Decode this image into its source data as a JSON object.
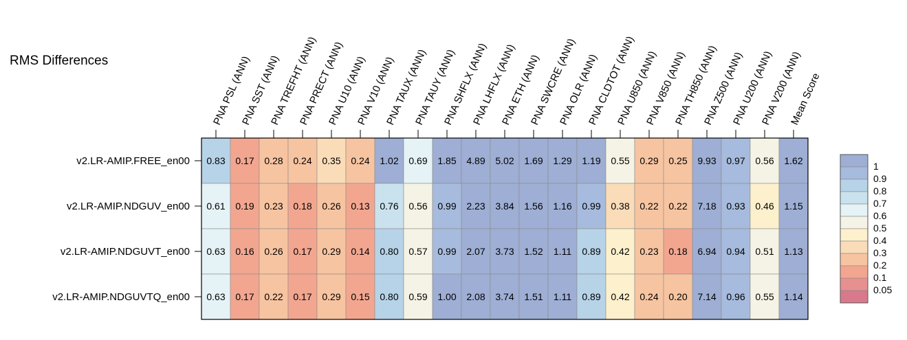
{
  "chart_data": {
    "type": "heatmap",
    "title": "RMS Differences",
    "columns": [
      "PNA PSL (ANN)",
      "PNA SST (ANN)",
      "PNA TREFHT (ANN)",
      "PNA PRECT (ANN)",
      "PNA U10 (ANN)",
      "PNA V10 (ANN)",
      "PNA TAUX (ANN)",
      "PNA TAUY (ANN)",
      "PNA SHFLX (ANN)",
      "PNA LHFLX (ANN)",
      "PNA ETH (ANN)",
      "PNA SWCRE (ANN)",
      "PNA OLR (ANN)",
      "PNA CLDTOT (ANN)",
      "PNA U850 (ANN)",
      "PNA V850 (ANN)",
      "PNA TH850 (ANN)",
      "PNA Z500 (ANN)",
      "PNA U200 (ANN)",
      "PNA V200 (ANN)",
      "Mean Score"
    ],
    "rows": [
      "v2.LR-AMIP.FREE_en00",
      "v2.LR-AMIP.NDGUV_en00",
      "v2.LR-AMIP.NDGUVT_en00",
      "v2.LR-AMIP.NDGUVTQ_en00"
    ],
    "values": [
      [
        0.83,
        0.17,
        0.28,
        0.24,
        0.35,
        0.24,
        1.02,
        0.69,
        1.85,
        4.89,
        5.02,
        1.69,
        1.29,
        1.19,
        0.55,
        0.29,
        0.25,
        9.93,
        0.97,
        0.56,
        1.62
      ],
      [
        0.61,
        0.19,
        0.23,
        0.18,
        0.26,
        0.13,
        0.76,
        0.56,
        0.99,
        2.23,
        3.84,
        1.56,
        1.16,
        0.99,
        0.38,
        0.22,
        0.22,
        7.18,
        0.93,
        0.46,
        1.15
      ],
      [
        0.63,
        0.16,
        0.26,
        0.17,
        0.29,
        0.14,
        0.8,
        0.57,
        0.99,
        2.07,
        3.73,
        1.52,
        1.11,
        0.89,
        0.42,
        0.23,
        0.18,
        6.94,
        0.94,
        0.51,
        1.13
      ],
      [
        0.63,
        0.17,
        0.22,
        0.17,
        0.29,
        0.15,
        0.8,
        0.59,
        1.0,
        2.08,
        3.74,
        1.51,
        1.11,
        0.89,
        0.42,
        0.24,
        0.2,
        7.14,
        0.96,
        0.55,
        1.14
      ]
    ],
    "value_labels": [
      [
        "0.83",
        "0.17",
        "0.28",
        "0.24",
        "0.35",
        "0.24",
        "1.02",
        "0.69",
        "1.85",
        "4.89",
        "5.02",
        "1.69",
        "1.29",
        "1.19",
        "0.55",
        "0.29",
        "0.25",
        "9.93",
        "0.97",
        "0.56",
        "1.62"
      ],
      [
        "0.61",
        "0.19",
        "0.23",
        "0.18",
        "0.26",
        "0.13",
        "0.76",
        "0.56",
        "0.99",
        "2.23",
        "3.84",
        "1.56",
        "1.16",
        "0.99",
        "0.38",
        "0.22",
        "0.22",
        "7.18",
        "0.93",
        "0.46",
        "1.15"
      ],
      [
        "0.63",
        "0.16",
        "0.26",
        "0.17",
        "0.29",
        "0.14",
        "0.80",
        "0.57",
        "0.99",
        "2.07",
        "3.73",
        "1.52",
        "1.11",
        "0.89",
        "0.42",
        "0.23",
        "0.18",
        "6.94",
        "0.94",
        "0.51",
        "1.13"
      ],
      [
        "0.63",
        "0.17",
        "0.22",
        "0.17",
        "0.29",
        "0.15",
        "0.80",
        "0.59",
        "1.00",
        "2.08",
        "3.74",
        "1.51",
        "1.11",
        "0.89",
        "0.42",
        "0.24",
        "0.20",
        "7.14",
        "0.96",
        "0.55",
        "1.14"
      ]
    ],
    "colorbar": {
      "tick_labels": [
        "1",
        "0.9",
        "0.8",
        "0.7",
        "0.6",
        "0.5",
        "0.4",
        "0.3",
        "0.2",
        "0.1",
        "0.05"
      ],
      "bins": [
        {
          "min": 0,
          "max": 0.05,
          "color": "#d87a8c"
        },
        {
          "min": 0.05,
          "max": 0.1,
          "color": "#e88f8f"
        },
        {
          "min": 0.1,
          "max": 0.2,
          "color": "#f2a690"
        },
        {
          "min": 0.2,
          "max": 0.3,
          "color": "#f7c4a1"
        },
        {
          "min": 0.3,
          "max": 0.4,
          "color": "#fadcb8"
        },
        {
          "min": 0.4,
          "max": 0.5,
          "color": "#fdf0cc"
        },
        {
          "min": 0.5,
          "max": 0.6,
          "color": "#f5f3e5"
        },
        {
          "min": 0.6,
          "max": 0.7,
          "color": "#e5f2f6"
        },
        {
          "min": 0.7,
          "max": 0.8,
          "color": "#c9e2ee"
        },
        {
          "min": 0.8,
          "max": 0.9,
          "color": "#b6d3e8"
        },
        {
          "min": 0.9,
          "max": 1.0,
          "color": "#a6bbdd"
        },
        {
          "min": 1.0,
          "max": 1000,
          "color": "#9eaed4"
        }
      ]
    }
  }
}
